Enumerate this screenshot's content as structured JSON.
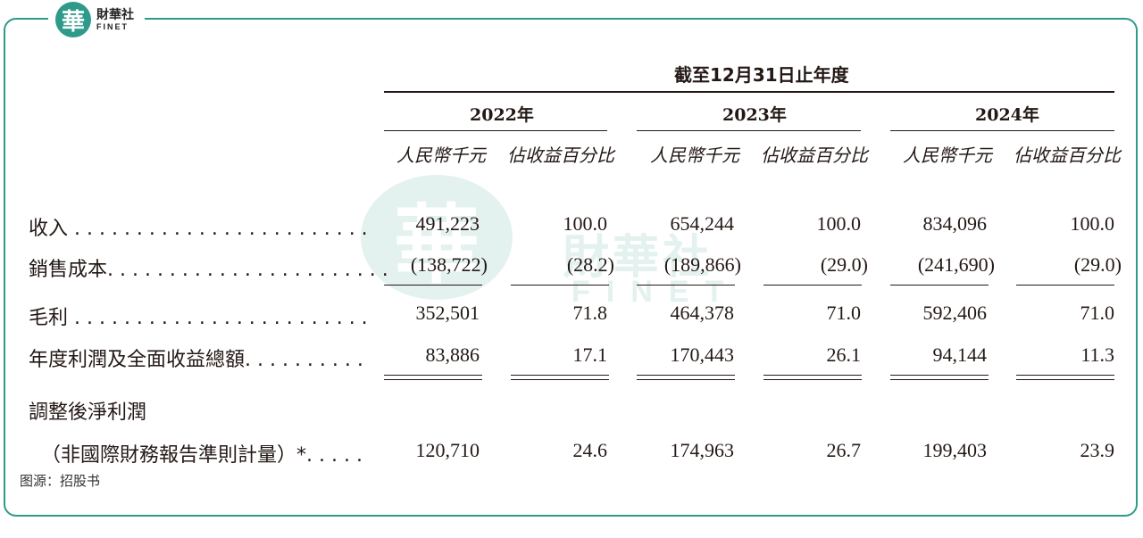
{
  "brand": {
    "seal_char": "華",
    "name_cn": "財華社",
    "name_en": "FINET"
  },
  "header": {
    "period": "截至12月31日止年度",
    "years": [
      "2022年",
      "2023年",
      "2024年"
    ],
    "unit_amount": "人民幣千元",
    "unit_pct": "佔收益百分比"
  },
  "rows": [
    {
      "label": "收入 . . . . . . . . . . . . . . . . . . . . . . . .",
      "values": [
        "491,223",
        "100.0",
        "654,244",
        "100.0",
        "834,096",
        "100.0"
      ]
    },
    {
      "label": "銷售成本. . . . . . . . . . . . . . . . . . . . . . .",
      "values": [
        "(138,722)",
        "(28.2)",
        "(189,866)",
        "(29.0)",
        "(241,690)",
        "(29.0)"
      ]
    },
    {
      "label": "毛利 . . . . . . . . . . . . . . . . . . . . . . . .",
      "values": [
        "352,501",
        "71.8",
        "464,378",
        "71.0",
        "592,406",
        "71.0"
      ]
    },
    {
      "label": "年度利潤及全面收益總額. . . . . . . . . .",
      "values": [
        "83,886",
        "17.1",
        "170,443",
        "26.1",
        "94,144",
        "11.3"
      ]
    },
    {
      "label": "調整後淨利潤",
      "values": []
    },
    {
      "label": "（非國際財務報告準則計量）*. . . . .",
      "values": [
        "120,710",
        "24.6",
        "174,963",
        "26.7",
        "199,403",
        "23.9"
      ]
    }
  ],
  "source": "图源：招股书",
  "colors": {
    "frame": "#2e9a8a",
    "text": "#231815"
  }
}
